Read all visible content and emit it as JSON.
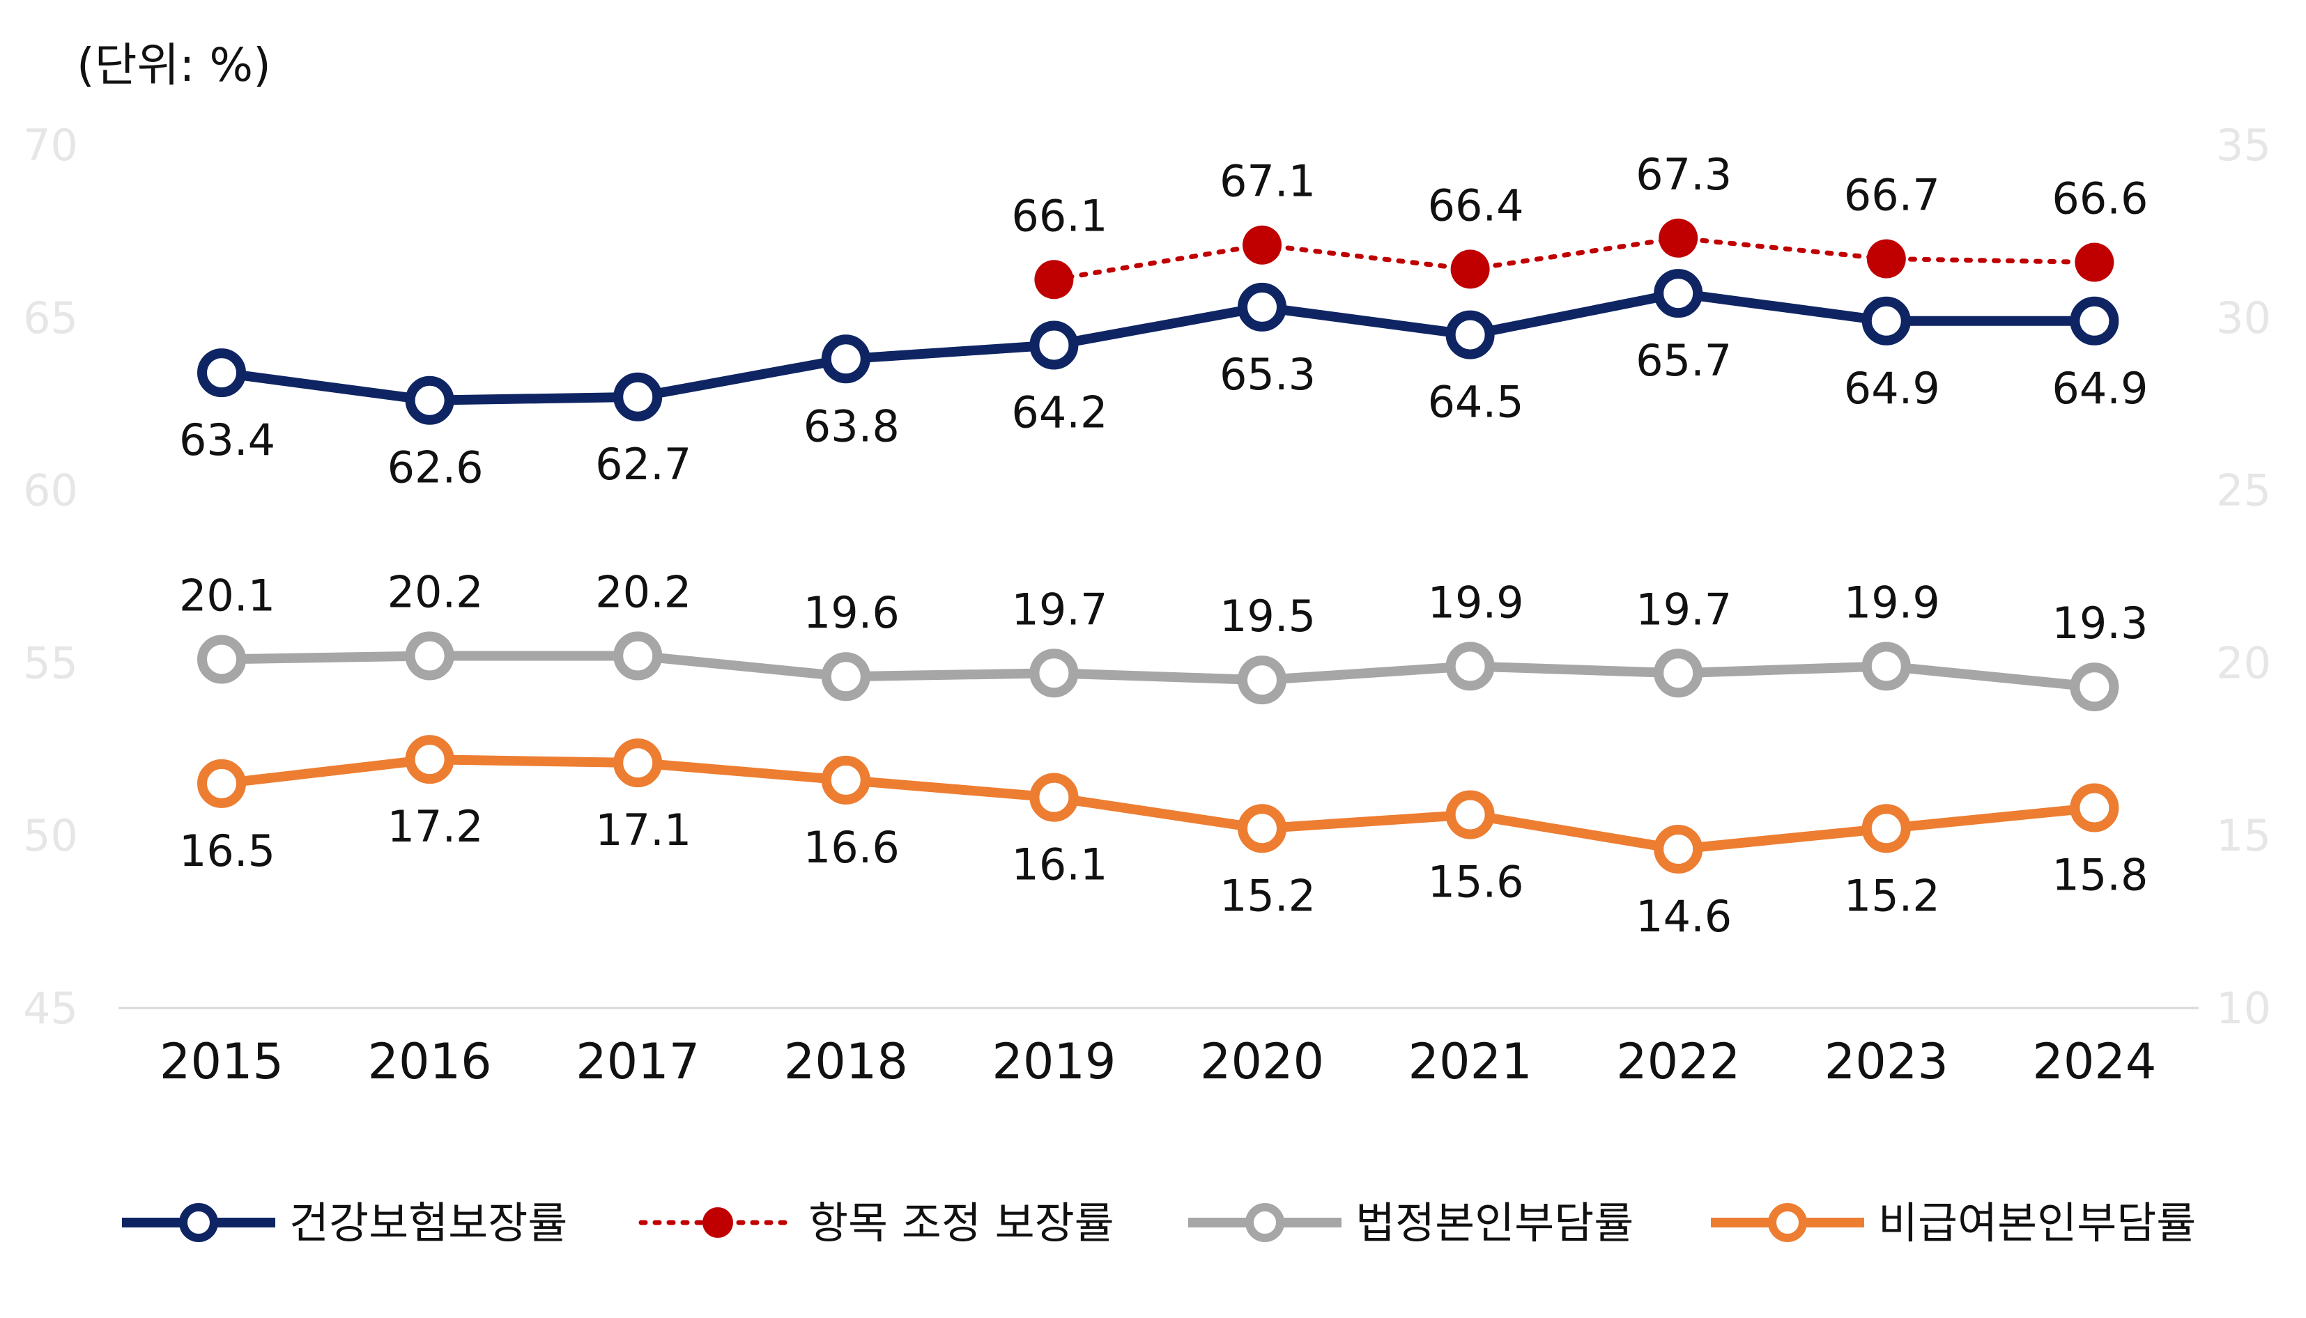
{
  "chart_data": {
    "type": "line",
    "unit_label": "(단위: %)",
    "categories": [
      "2015",
      "2016",
      "2017",
      "2018",
      "2019",
      "2020",
      "2021",
      "2022",
      "2023",
      "2024"
    ],
    "left_axis": {
      "ticks": [
        "70",
        "65",
        "60",
        "55",
        "50",
        "45"
      ],
      "ylim": [
        45,
        70
      ],
      "tick_color": "#e6e6e6"
    },
    "right_axis": {
      "ticks": [
        "35",
        "30",
        "25",
        "20",
        "15",
        "10"
      ],
      "ylim": [
        10,
        35
      ],
      "tick_color": "#e6e6e6"
    },
    "grid": false,
    "legend_position": "bottom",
    "series": [
      {
        "name": "건강보험보장률",
        "axis": "left",
        "style": "solid-hollow",
        "color": "#0f2563",
        "values": [
          63.4,
          62.6,
          62.7,
          63.8,
          64.2,
          65.3,
          64.5,
          65.7,
          64.9,
          64.9
        ],
        "labels": [
          "63.4",
          "62.6",
          "62.7",
          "63.8",
          "64.2",
          "65.3",
          "64.5",
          "65.7",
          "64.9",
          "64.9"
        ],
        "label_position": "below"
      },
      {
        "name": "항목 조정 보장률",
        "axis": "left",
        "style": "dotted-filled",
        "color": "#c00000",
        "values": [
          null,
          null,
          null,
          null,
          66.1,
          67.1,
          66.4,
          67.3,
          66.7,
          66.6
        ],
        "labels": [
          "",
          "",
          "",
          "",
          "66.1",
          "67.1",
          "66.4",
          "67.3",
          "66.7",
          "66.6"
        ],
        "label_position": "above"
      },
      {
        "name": "법정본인부담률",
        "axis": "right",
        "style": "solid-hollow",
        "color": "#a6a6a6",
        "values": [
          20.1,
          20.2,
          20.2,
          19.6,
          19.7,
          19.5,
          19.9,
          19.7,
          19.9,
          19.3
        ],
        "labels": [
          "20.1",
          "20.2",
          "20.2",
          "19.6",
          "19.7",
          "19.5",
          "19.9",
          "19.7",
          "19.9",
          "19.3"
        ],
        "label_position": "above"
      },
      {
        "name": "비급여본인부담률",
        "axis": "right",
        "style": "solid-hollow",
        "color": "#ed7d31",
        "values": [
          16.5,
          17.2,
          17.1,
          16.6,
          16.1,
          15.2,
          15.6,
          14.6,
          15.2,
          15.8
        ],
        "labels": [
          "16.5",
          "17.2",
          "17.1",
          "16.6",
          "16.1",
          "15.2",
          "15.6",
          "14.6",
          "15.2",
          "15.8"
        ],
        "label_position": "below"
      }
    ]
  }
}
